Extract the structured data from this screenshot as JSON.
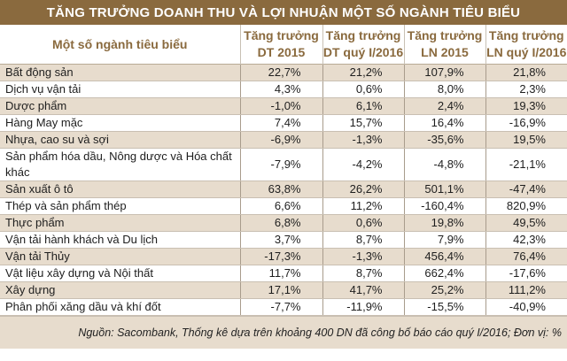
{
  "title": "TĂNG TRƯỞNG DOANH THU VÀ LỢI NHUẬN MỘT SỐ NGÀNH TIÊU BIỂU",
  "headers": [
    {
      "line1": "Một số ngành tiêu biểu",
      "line2": ""
    },
    {
      "line1": "Tăng trưởng",
      "line2": "DT 2015"
    },
    {
      "line1": "Tăng trưởng",
      "line2": "DT quý I/2016"
    },
    {
      "line1": "Tăng trưởng",
      "line2": "LN 2015"
    },
    {
      "line1": "Tăng trưởng",
      "line2": "LN quý I/2016"
    }
  ],
  "rows": [
    {
      "name": "Bất động sản",
      "dt2015": "22,7%",
      "dtq1": "21,2%",
      "ln2015": "107,9%",
      "lnq1": "21,8%"
    },
    {
      "name": "Dịch vụ vận tải",
      "dt2015": "4,3%",
      "dtq1": "0,6%",
      "ln2015": "8,0%",
      "lnq1": "2,3%"
    },
    {
      "name": "Dược phẩm",
      "dt2015": "-1,0%",
      "dtq1": "6,1%",
      "ln2015": "2,4%",
      "lnq1": "19,3%"
    },
    {
      "name": "Hàng May mặc",
      "dt2015": "7,4%",
      "dtq1": "15,7%",
      "ln2015": "16,4%",
      "lnq1": "-16,9%"
    },
    {
      "name": "Nhựa, cao su và sợi",
      "dt2015": "-6,9%",
      "dtq1": "-1,3%",
      "ln2015": "-35,6%",
      "lnq1": "19,5%"
    },
    {
      "name": "Sản phẩm hóa dầu, Nông dược và Hóa chất khác",
      "dt2015": "-7,9%",
      "dtq1": "-4,2%",
      "ln2015": "-4,8%",
      "lnq1": "-21,1%"
    },
    {
      "name": "Sản xuất ô tô",
      "dt2015": "63,8%",
      "dtq1": "26,2%",
      "ln2015": "501,1%",
      "lnq1": "-47,4%"
    },
    {
      "name": "Thép và sản phẩm thép",
      "dt2015": "6,6%",
      "dtq1": "11,2%",
      "ln2015": "-160,4%",
      "lnq1": "820,9%"
    },
    {
      "name": "Thực phẩm",
      "dt2015": "6,8%",
      "dtq1": "0,6%",
      "ln2015": "19,8%",
      "lnq1": "49,5%"
    },
    {
      "name": "Vận tải hành khách và Du lịch",
      "dt2015": "3,7%",
      "dtq1": "8,7%",
      "ln2015": "7,9%",
      "lnq1": "42,3%"
    },
    {
      "name": "Vận tải Thủy",
      "dt2015": "-17,3%",
      "dtq1": "-1,3%",
      "ln2015": "456,4%",
      "lnq1": "76,4%"
    },
    {
      "name": "Vật liệu xây dựng và Nội thất",
      "dt2015": "11,7%",
      "dtq1": "8,7%",
      "ln2015": "662,4%",
      "lnq1": "-17,6%"
    },
    {
      "name": "Xây dựng",
      "dt2015": "17,1%",
      "dtq1": "41,7%",
      "ln2015": "25,2%",
      "lnq1": "111,2%"
    },
    {
      "name": "Phân phối xăng dầu và khí đốt",
      "dt2015": "-7,7%",
      "dtq1": "-11,9%",
      "ln2015": "-15,5%",
      "lnq1": "-40,9%"
    }
  ],
  "footer": "Nguồn: Sacombank, Thống kê dựa trên khoảng 400 DN đã công bố báo cáo quý I/2016; Đơn vị: %",
  "colors": {
    "title_bg": "#8a6a3e",
    "header_text": "#8a6a3e",
    "shade_row": "#e7dccd"
  },
  "chart_data": {
    "type": "table",
    "title": "TĂNG TRƯỞNG DOANH THU VÀ LỢI NHUẬN MỘT SỐ NGÀNH TIÊU BIỂU",
    "columns": [
      "Một số ngành tiêu biểu",
      "Tăng trưởng DT 2015",
      "Tăng trưởng DT quý I/2016",
      "Tăng trưởng LN 2015",
      "Tăng trưởng LN quý I/2016"
    ],
    "categories": [
      "Bất động sản",
      "Dịch vụ vận tải",
      "Dược phẩm",
      "Hàng May mặc",
      "Nhựa, cao su và sợi",
      "Sản phẩm hóa dầu, Nông dược và Hóa chất khác",
      "Sản xuất ô tô",
      "Thép và sản phẩm thép",
      "Thực phẩm",
      "Vận tải hành khách và Du lịch",
      "Vận tải Thủy",
      "Vật liệu xây dựng và Nội thất",
      "Xây dựng",
      "Phân phối xăng dầu và khí đốt"
    ],
    "series": [
      {
        "name": "Tăng trưởng DT 2015",
        "values": [
          22.7,
          4.3,
          -1.0,
          7.4,
          -6.9,
          -7.9,
          63.8,
          6.6,
          6.8,
          3.7,
          -17.3,
          11.7,
          17.1,
          -7.7
        ]
      },
      {
        "name": "Tăng trưởng DT quý I/2016",
        "values": [
          21.2,
          0.6,
          6.1,
          15.7,
          -1.3,
          -4.2,
          26.2,
          11.2,
          0.6,
          8.7,
          -1.3,
          8.7,
          41.7,
          -11.9
        ]
      },
      {
        "name": "Tăng trưởng LN 2015",
        "values": [
          107.9,
          8.0,
          2.4,
          16.4,
          -35.6,
          -4.8,
          501.1,
          -160.4,
          19.8,
          7.9,
          456.4,
          662.4,
          25.2,
          -15.5
        ]
      },
      {
        "name": "Tăng trưởng LN quý I/2016",
        "values": [
          21.8,
          2.3,
          19.3,
          -16.9,
          19.5,
          -21.1,
          -47.4,
          820.9,
          49.5,
          42.3,
          76.4,
          -17.6,
          111.2,
          -40.9
        ]
      }
    ],
    "unit": "%",
    "note": "Nguồn: Sacombank, Thống kê dựa trên khoảng 400 DN đã công bố báo cáo quý I/2016; Đơn vị: %"
  }
}
